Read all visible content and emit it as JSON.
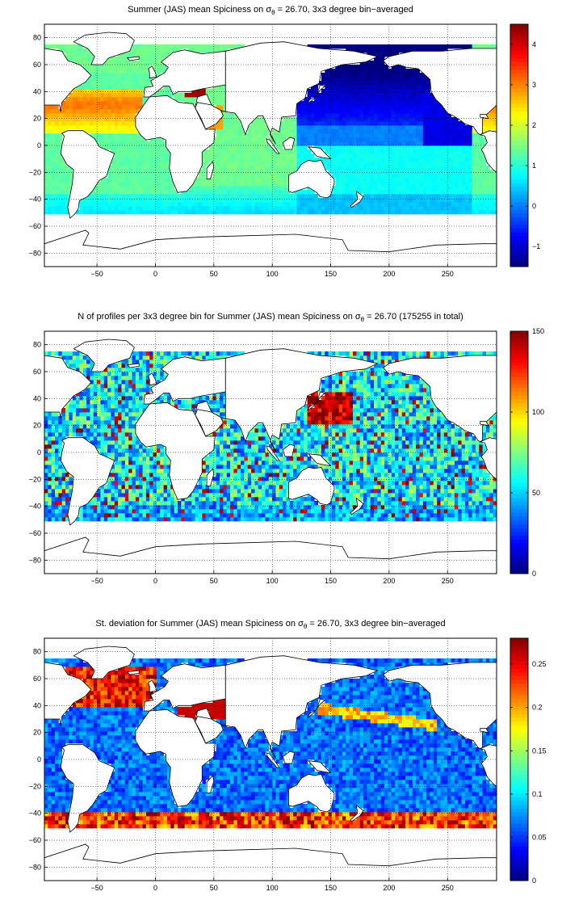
{
  "figure": {
    "panels": [
      {
        "id": "spiciness-mean",
        "title_prefix": "Summer (JAS) mean Spiciness on σ",
        "title_sub": "θ",
        "title_suffix": " = 26.70, 3x3 degree bin−averaged",
        "colorbar_ticks": [
          "4",
          "3",
          "2",
          "1",
          "0",
          "−1"
        ],
        "colorbar_range": [
          -1.5,
          4.5
        ],
        "colormap": "jet"
      },
      {
        "id": "profile-count",
        "title_prefix": "N of profiles per 3x3 degree bin for Summer (JAS) mean Spiciness on σ",
        "title_sub": "θ",
        "title_suffix": " = 26.70 (175255 in total)",
        "colorbar_ticks": [
          "150",
          "100",
          "50",
          "0"
        ],
        "colorbar_range": [
          0,
          150
        ],
        "colormap": "jet"
      },
      {
        "id": "spiciness-std",
        "title_prefix": "St. deviation for Summer (JAS) mean Spiciness on σ",
        "title_sub": "θ",
        "title_suffix": " = 26.70, 3x3 degree bin−averaged",
        "colorbar_ticks": [
          "0.25",
          "0.2",
          "0.15",
          "0.1",
          "0.05",
          "0"
        ],
        "colorbar_range": [
          0,
          0.28
        ],
        "colormap": "jet"
      }
    ],
    "x_ticks": [
      "−50",
      "0",
      "50",
      "100",
      "150",
      "200",
      "250"
    ],
    "y_ticks": [
      "80",
      "60",
      "40",
      "20",
      "0",
      "−20",
      "−40",
      "−60",
      "−80"
    ],
    "x_range": [
      -95,
      292
    ],
    "y_range": [
      -90,
      90
    ],
    "grid": "dotted"
  }
}
